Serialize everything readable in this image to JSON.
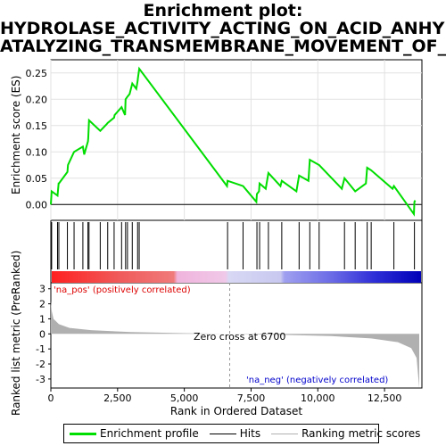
{
  "titles": [
    "Enrichment plot:",
    "HYDROLASE_ACTIVITY_ACTING_ON_ACID_ANHYDRID",
    "ATALYZING_TRANSMEMBRANE_MOVEMENT_OF_SUBSTAI"
  ],
  "colors": {
    "es_line": "#00dd00",
    "hits": "#000000",
    "metric": "#b0b0b0",
    "pos_label": "#dd0000",
    "neg_label": "#0000cc"
  },
  "legend": {
    "es": "Enrichment profile",
    "hits": "Hits",
    "metric": "Ranking metric scores"
  },
  "chart_data": [
    {
      "type": "line",
      "panel": "enrichment",
      "ylabel": "Enrichment score (ES)",
      "yticks": [
        "0.25",
        "0.20",
        "0.15",
        "0.10",
        "0.05",
        "0.00"
      ],
      "ylim": [
        -0.03,
        0.275
      ],
      "xlim": [
        0,
        13900
      ],
      "x": [
        0,
        30,
        250,
        290,
        300,
        620,
        640,
        870,
        1200,
        1250,
        1390,
        1400,
        1430,
        1850,
        2100,
        2130,
        2370,
        2390,
        2650,
        2780,
        2800,
        2870,
        2950,
        3050,
        3200,
        3250,
        3260,
        3310,
        6600,
        6620,
        7200,
        7700,
        7720,
        7800,
        7820,
        8050,
        8150,
        8600,
        8650,
        9200,
        9300,
        9650,
        9700,
        10050,
        10900,
        11000,
        11400,
        11800,
        11850,
        12000,
        12800,
        12850,
        13600,
        13620,
        13650
      ],
      "y": [
        0,
        0.025,
        0.017,
        0.04,
        0.04,
        0.062,
        0.075,
        0.1,
        0.11,
        0.095,
        0.12,
        0.125,
        0.16,
        0.14,
        0.153,
        0.155,
        0.165,
        0.17,
        0.185,
        0.17,
        0.2,
        0.205,
        0.21,
        0.23,
        0.22,
        0.235,
        0.24,
        0.258,
        0.035,
        0.045,
        0.035,
        0.005,
        0.02,
        0.025,
        0.04,
        0.03,
        0.06,
        0.035,
        0.045,
        0.025,
        0.055,
        0.045,
        0.085,
        0.075,
        0.03,
        0.05,
        0.025,
        0.04,
        0.07,
        0.065,
        0.03,
        0.035,
        -0.018,
        0.005,
        0.008
      ]
    },
    {
      "type": "bar",
      "panel": "hits",
      "x": [
        30,
        250,
        300,
        620,
        870,
        1200,
        1390,
        1430,
        1850,
        2130,
        2370,
        2650,
        2800,
        2870,
        3050,
        3250,
        3310,
        6620,
        7200,
        7720,
        7820,
        8150,
        8650,
        9300,
        9700,
        10050,
        11000,
        11400,
        11850,
        12000,
        12850,
        13620
      ]
    },
    {
      "type": "area",
      "panel": "ranked_metric",
      "xlabel": "Rank in Ordered Dataset",
      "ylabel": "Ranked list metric (PreRanked)",
      "xticks": [
        "0",
        "2,500",
        "5,000",
        "7,500",
        "10,000",
        "12,500"
      ],
      "yticks": [
        "3",
        "2",
        "1",
        "0",
        "-1",
        "-2",
        "-3"
      ],
      "ylim": [
        -3.6,
        3.4
      ],
      "xlim": [
        0,
        13900
      ],
      "x": [
        0,
        30,
        100,
        300,
        700,
        1500,
        3000,
        5000,
        6700,
        8500,
        10500,
        12000,
        13000,
        13500,
        13700,
        13800
      ],
      "y": [
        2.2,
        1.55,
        1.0,
        0.65,
        0.4,
        0.25,
        0.12,
        0.05,
        0,
        -0.05,
        -0.15,
        -0.3,
        -0.55,
        -0.95,
        -1.6,
        -3.6
      ],
      "zero_cross_label": "Zero cross at 6700",
      "pos_label": "'na_pos' (positively correlated)",
      "neg_label": "'na_neg' (negatively correlated)"
    }
  ]
}
